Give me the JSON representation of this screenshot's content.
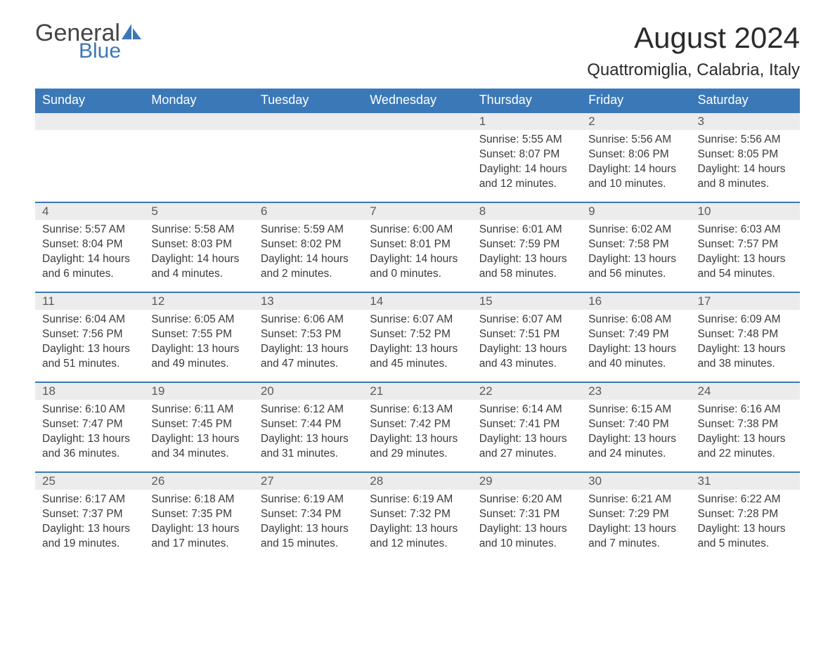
{
  "brand": {
    "word1": "General",
    "word2": "Blue",
    "accent_color": "#3b78b8"
  },
  "title": "August 2024",
  "location": "Quattromiglia, Calabria, Italy",
  "weekdays": [
    "Sunday",
    "Monday",
    "Tuesday",
    "Wednesday",
    "Thursday",
    "Friday",
    "Saturday"
  ],
  "colors": {
    "header_bg": "#3b78b8",
    "header_text": "#ffffff",
    "daynum_bg": "#ececec",
    "daynum_text": "#5a5a5a",
    "body_text": "#3a3a3a",
    "cell_border": "#3b78b8",
    "page_bg": "#ffffff"
  },
  "typography": {
    "title_fontsize": 42,
    "location_fontsize": 24,
    "weekday_fontsize": 18,
    "daynum_fontsize": 17,
    "body_fontsize": 15.5,
    "font_family": "Arial"
  },
  "layout": {
    "columns": 7,
    "rows": 5,
    "first_weekday_index": 4
  },
  "weeks": [
    [
      null,
      null,
      null,
      null,
      {
        "n": "1",
        "sunrise": "Sunrise: 5:55 AM",
        "sunset": "Sunset: 8:07 PM",
        "daylight": "Daylight: 14 hours and 12 minutes."
      },
      {
        "n": "2",
        "sunrise": "Sunrise: 5:56 AM",
        "sunset": "Sunset: 8:06 PM",
        "daylight": "Daylight: 14 hours and 10 minutes."
      },
      {
        "n": "3",
        "sunrise": "Sunrise: 5:56 AM",
        "sunset": "Sunset: 8:05 PM",
        "daylight": "Daylight: 14 hours and 8 minutes."
      }
    ],
    [
      {
        "n": "4",
        "sunrise": "Sunrise: 5:57 AM",
        "sunset": "Sunset: 8:04 PM",
        "daylight": "Daylight: 14 hours and 6 minutes."
      },
      {
        "n": "5",
        "sunrise": "Sunrise: 5:58 AM",
        "sunset": "Sunset: 8:03 PM",
        "daylight": "Daylight: 14 hours and 4 minutes."
      },
      {
        "n": "6",
        "sunrise": "Sunrise: 5:59 AM",
        "sunset": "Sunset: 8:02 PM",
        "daylight": "Daylight: 14 hours and 2 minutes."
      },
      {
        "n": "7",
        "sunrise": "Sunrise: 6:00 AM",
        "sunset": "Sunset: 8:01 PM",
        "daylight": "Daylight: 14 hours and 0 minutes."
      },
      {
        "n": "8",
        "sunrise": "Sunrise: 6:01 AM",
        "sunset": "Sunset: 7:59 PM",
        "daylight": "Daylight: 13 hours and 58 minutes."
      },
      {
        "n": "9",
        "sunrise": "Sunrise: 6:02 AM",
        "sunset": "Sunset: 7:58 PM",
        "daylight": "Daylight: 13 hours and 56 minutes."
      },
      {
        "n": "10",
        "sunrise": "Sunrise: 6:03 AM",
        "sunset": "Sunset: 7:57 PM",
        "daylight": "Daylight: 13 hours and 54 minutes."
      }
    ],
    [
      {
        "n": "11",
        "sunrise": "Sunrise: 6:04 AM",
        "sunset": "Sunset: 7:56 PM",
        "daylight": "Daylight: 13 hours and 51 minutes."
      },
      {
        "n": "12",
        "sunrise": "Sunrise: 6:05 AM",
        "sunset": "Sunset: 7:55 PM",
        "daylight": "Daylight: 13 hours and 49 minutes."
      },
      {
        "n": "13",
        "sunrise": "Sunrise: 6:06 AM",
        "sunset": "Sunset: 7:53 PM",
        "daylight": "Daylight: 13 hours and 47 minutes."
      },
      {
        "n": "14",
        "sunrise": "Sunrise: 6:07 AM",
        "sunset": "Sunset: 7:52 PM",
        "daylight": "Daylight: 13 hours and 45 minutes."
      },
      {
        "n": "15",
        "sunrise": "Sunrise: 6:07 AM",
        "sunset": "Sunset: 7:51 PM",
        "daylight": "Daylight: 13 hours and 43 minutes."
      },
      {
        "n": "16",
        "sunrise": "Sunrise: 6:08 AM",
        "sunset": "Sunset: 7:49 PM",
        "daylight": "Daylight: 13 hours and 40 minutes."
      },
      {
        "n": "17",
        "sunrise": "Sunrise: 6:09 AM",
        "sunset": "Sunset: 7:48 PM",
        "daylight": "Daylight: 13 hours and 38 minutes."
      }
    ],
    [
      {
        "n": "18",
        "sunrise": "Sunrise: 6:10 AM",
        "sunset": "Sunset: 7:47 PM",
        "daylight": "Daylight: 13 hours and 36 minutes."
      },
      {
        "n": "19",
        "sunrise": "Sunrise: 6:11 AM",
        "sunset": "Sunset: 7:45 PM",
        "daylight": "Daylight: 13 hours and 34 minutes."
      },
      {
        "n": "20",
        "sunrise": "Sunrise: 6:12 AM",
        "sunset": "Sunset: 7:44 PM",
        "daylight": "Daylight: 13 hours and 31 minutes."
      },
      {
        "n": "21",
        "sunrise": "Sunrise: 6:13 AM",
        "sunset": "Sunset: 7:42 PM",
        "daylight": "Daylight: 13 hours and 29 minutes."
      },
      {
        "n": "22",
        "sunrise": "Sunrise: 6:14 AM",
        "sunset": "Sunset: 7:41 PM",
        "daylight": "Daylight: 13 hours and 27 minutes."
      },
      {
        "n": "23",
        "sunrise": "Sunrise: 6:15 AM",
        "sunset": "Sunset: 7:40 PM",
        "daylight": "Daylight: 13 hours and 24 minutes."
      },
      {
        "n": "24",
        "sunrise": "Sunrise: 6:16 AM",
        "sunset": "Sunset: 7:38 PM",
        "daylight": "Daylight: 13 hours and 22 minutes."
      }
    ],
    [
      {
        "n": "25",
        "sunrise": "Sunrise: 6:17 AM",
        "sunset": "Sunset: 7:37 PM",
        "daylight": "Daylight: 13 hours and 19 minutes."
      },
      {
        "n": "26",
        "sunrise": "Sunrise: 6:18 AM",
        "sunset": "Sunset: 7:35 PM",
        "daylight": "Daylight: 13 hours and 17 minutes."
      },
      {
        "n": "27",
        "sunrise": "Sunrise: 6:19 AM",
        "sunset": "Sunset: 7:34 PM",
        "daylight": "Daylight: 13 hours and 15 minutes."
      },
      {
        "n": "28",
        "sunrise": "Sunrise: 6:19 AM",
        "sunset": "Sunset: 7:32 PM",
        "daylight": "Daylight: 13 hours and 12 minutes."
      },
      {
        "n": "29",
        "sunrise": "Sunrise: 6:20 AM",
        "sunset": "Sunset: 7:31 PM",
        "daylight": "Daylight: 13 hours and 10 minutes."
      },
      {
        "n": "30",
        "sunrise": "Sunrise: 6:21 AM",
        "sunset": "Sunset: 7:29 PM",
        "daylight": "Daylight: 13 hours and 7 minutes."
      },
      {
        "n": "31",
        "sunrise": "Sunrise: 6:22 AM",
        "sunset": "Sunset: 7:28 PM",
        "daylight": "Daylight: 13 hours and 5 minutes."
      }
    ]
  ]
}
